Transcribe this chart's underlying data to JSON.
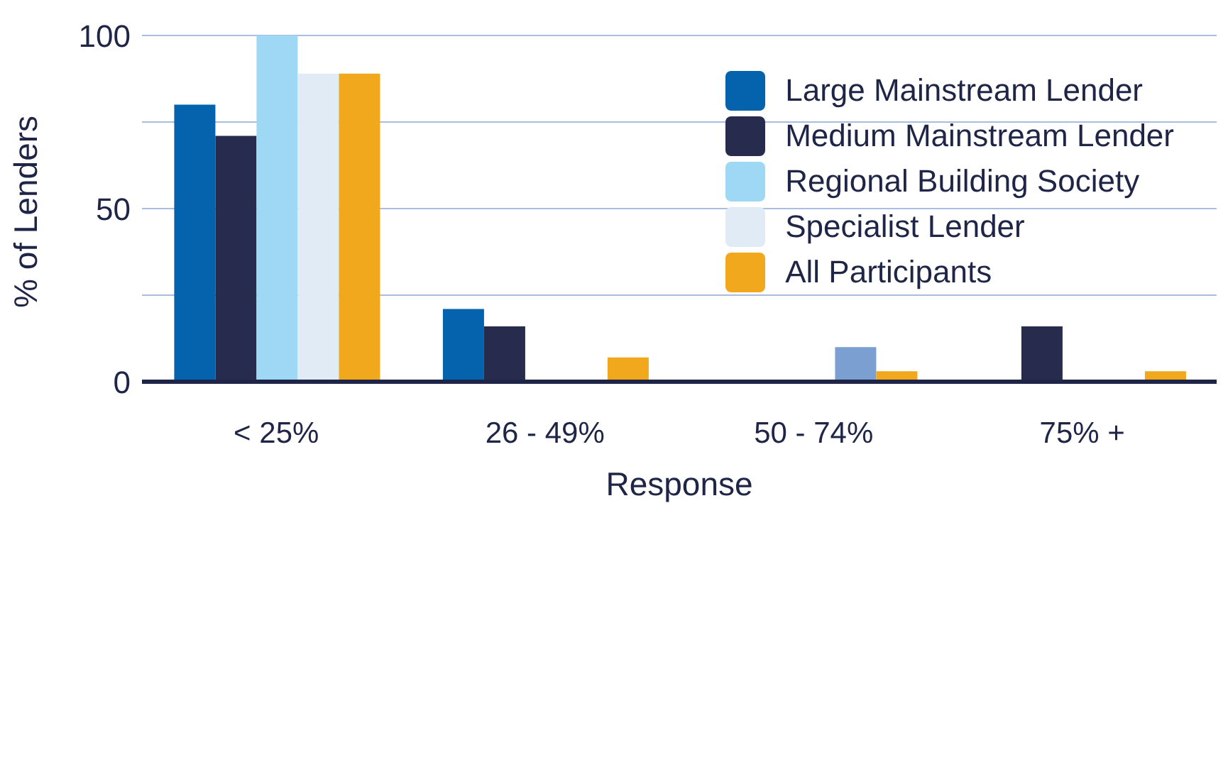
{
  "chart_data": {
    "type": "bar",
    "xlabel": "Response",
    "ylabel": "% of Lenders",
    "categories": [
      "< 25%",
      "26 - 49%",
      "50 - 74%",
      "75% +"
    ],
    "series": [
      {
        "name": "Large Mainstream Lender",
        "color": "#0563ad",
        "values": [
          80,
          21,
          0,
          0
        ]
      },
      {
        "name": "Medium Mainstream Lender",
        "color": "#272b4d",
        "values": [
          71,
          16,
          0,
          16
        ]
      },
      {
        "name": "Regional Building Society",
        "color": "#9ed8f5",
        "values": [
          100,
          0,
          0,
          0
        ]
      },
      {
        "name": "Specialist Lender",
        "color": "#e1ebf6",
        "colors": [
          "#e1ebf6",
          "#e1ebf6",
          "#7b9fd1",
          "#e1ebf6"
        ],
        "values": [
          89,
          0,
          10,
          0
        ]
      },
      {
        "name": "All Participants",
        "color": "#f2a81d",
        "values": [
          89,
          7,
          3,
          3
        ]
      }
    ],
    "ylim": [
      0,
      100
    ],
    "yticks": [
      0,
      {
        "value": 25,
        "label": null
      },
      50,
      {
        "value": 75,
        "label": null
      },
      100
    ],
    "grid": "y",
    "legend": "top right"
  }
}
